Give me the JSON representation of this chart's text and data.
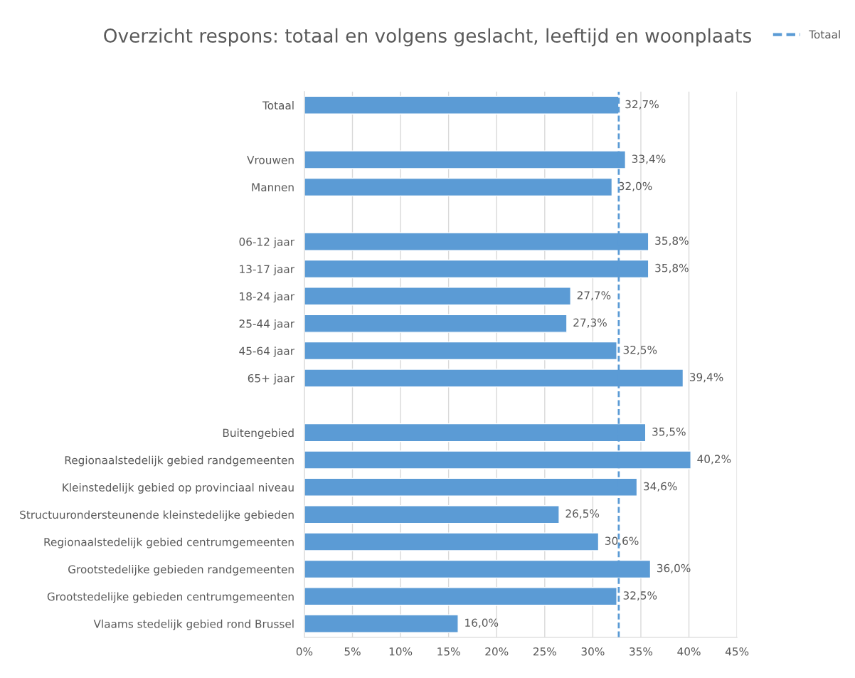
{
  "chart_data": {
    "type": "bar",
    "orientation": "horizontal",
    "title": "Overzicht respons: totaal en volgens geslacht, leeftijd en woonplaats",
    "categories": [
      "Totaal",
      null,
      "Vrouwen",
      "Mannen",
      null,
      "06-12 jaar",
      "13-17 jaar",
      "18-24 jaar",
      "25-44 jaar",
      "45-64 jaar",
      "65+ jaar",
      null,
      "Buitengebied",
      "Regionaalstedelijk gebied randgemeenten",
      "Kleinstedelijk gebied op provinciaal niveau",
      "Structuurondersteunende kleinstedelijke gebieden",
      "Regionaalstedelijk gebied centrumgemeenten",
      "Grootstedelijke gebieden randgemeenten",
      "Grootstedelijke gebieden centrumgemeenten",
      "Vlaams stedelijk gebied rond Brussel"
    ],
    "series": [
      {
        "color": "#5b9bd5",
        "values": [
          32.7,
          null,
          33.4,
          32.0,
          null,
          35.8,
          35.8,
          27.7,
          27.3,
          32.5,
          39.4,
          null,
          35.5,
          40.2,
          34.6,
          26.5,
          30.6,
          36.0,
          32.5,
          16.0
        ],
        "value_labels": [
          "32,7%",
          null,
          "33,4%",
          "32,0%",
          null,
          "35,8%",
          "35,8%",
          "27,7%",
          "27,3%",
          "32,5%",
          "39,4%",
          null,
          "35,5%",
          "40,2%",
          "34,6%",
          "26,5%",
          "30,6%",
          "36,0%",
          "32,5%",
          "16,0%"
        ]
      }
    ],
    "xlim": [
      0,
      45
    ],
    "xticks": [
      {
        "value": 0,
        "label": "0%"
      },
      {
        "value": 5,
        "label": "5%"
      },
      {
        "value": 10,
        "label": "10%"
      },
      {
        "value": 15,
        "label": "15%"
      },
      {
        "value": 20,
        "label": "20%"
      },
      {
        "value": 25,
        "label": "25%"
      },
      {
        "value": 30,
        "label": "30%"
      },
      {
        "value": 35,
        "label": "35%"
      },
      {
        "value": 40,
        "label": "40%"
      },
      {
        "value": 45,
        "label": "45%"
      }
    ],
    "ref_lines": [
      {
        "axis": "x",
        "value": 32.7,
        "label": "Totaal",
        "color": "#5b9bd5",
        "line_style": "dashed"
      }
    ],
    "grid": "x",
    "legend": "top right"
  }
}
